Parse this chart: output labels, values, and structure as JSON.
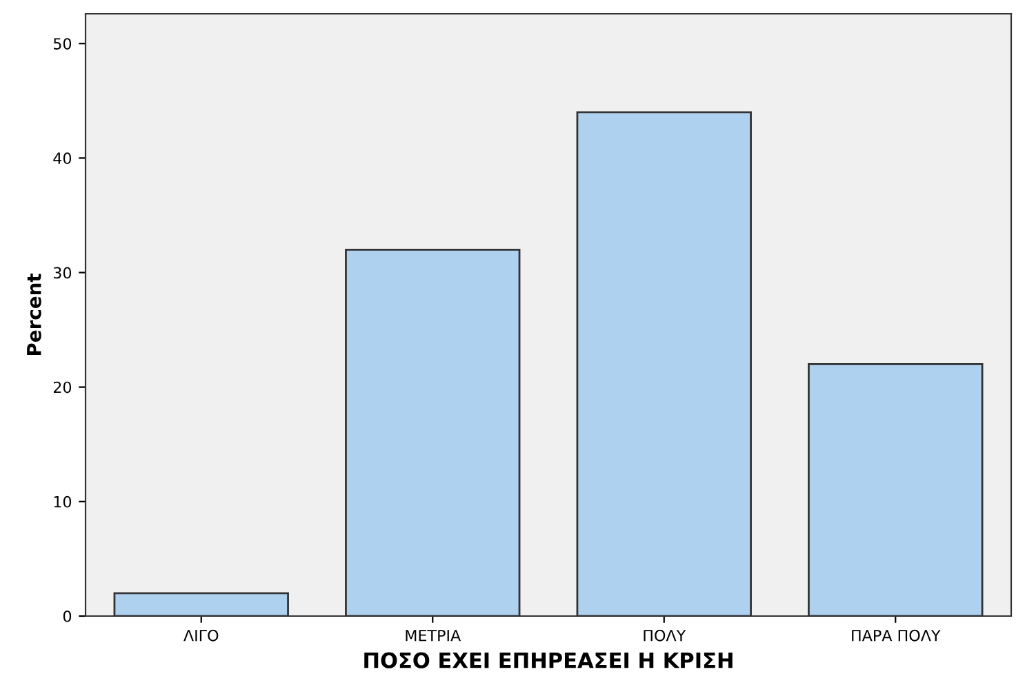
{
  "chart_data": {
    "type": "bar",
    "xlabel": "ΠΟΣΟ ΕΧΕΙ ΕΠΗΡΕΑΣΕΙ Η ΚΡΙΣΗ",
    "ylabel": "Percent",
    "categories": [
      "ΛΙΓΟ",
      "ΜΕΤΡΙΑ",
      "ΠΟΛΥ",
      "ΠΑΡΑ ΠΟΛΥ"
    ],
    "values": [
      2,
      32,
      44,
      22
    ],
    "color": "#aed1f0",
    "ylim": [
      0,
      52.6
    ],
    "yticks": [
      0,
      10,
      20,
      30,
      40,
      50
    ],
    "grid": false
  }
}
